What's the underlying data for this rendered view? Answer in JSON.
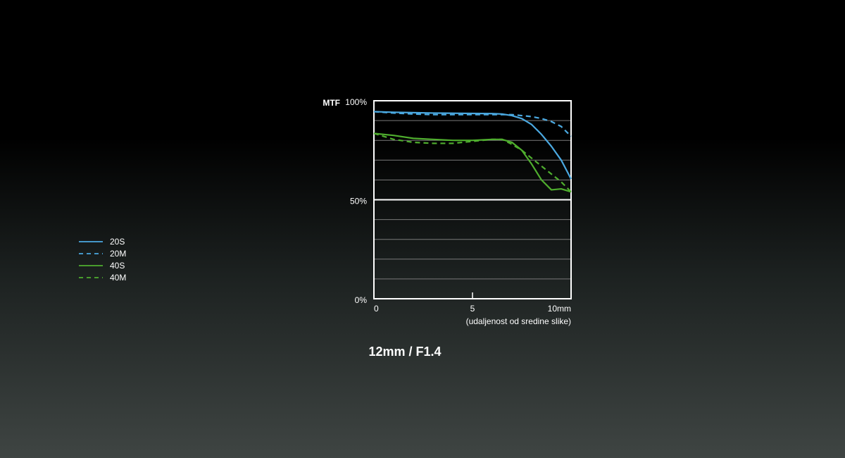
{
  "chart_data": {
    "type": "line",
    "title": "12mm / F1.4",
    "y_label": "MTF",
    "x_label": "(udaljenost od sredine slike)",
    "x": [
      0,
      1,
      2,
      3,
      4,
      5,
      6,
      6.5,
      7,
      7.5,
      8,
      8.5,
      9,
      9.5,
      10
    ],
    "series": [
      {
        "name": "20S",
        "color": "#4ba9e1",
        "dashed": false,
        "values": [
          94.5,
          94.2,
          94,
          93.8,
          93.7,
          93.6,
          93.5,
          93.3,
          92.5,
          91,
          88,
          83,
          77,
          70,
          60.5
        ]
      },
      {
        "name": "20M",
        "color": "#4ba9e1",
        "dashed": true,
        "values": [
          94.5,
          93.8,
          93.3,
          93,
          93,
          93,
          93,
          93,
          93,
          92.5,
          92,
          91,
          89.5,
          87,
          82
        ]
      },
      {
        "name": "40S",
        "color": "#4fae2e",
        "dashed": false,
        "values": [
          83.5,
          82.5,
          81,
          80.5,
          80,
          80,
          80.5,
          80.5,
          79,
          75,
          68,
          60,
          55,
          55.5,
          54
        ]
      },
      {
        "name": "40M",
        "color": "#4fae2e",
        "dashed": true,
        "values": [
          83.5,
          80.5,
          79,
          78.5,
          78.5,
          79.5,
          80.5,
          80.5,
          78,
          75,
          71,
          67,
          63,
          59,
          54
        ]
      }
    ],
    "xlim": [
      0,
      10
    ],
    "xticks": [
      0,
      5,
      {
        "value": 10,
        "label": "10mm"
      }
    ],
    "ylim": [
      0,
      100
    ],
    "yticks": [
      {
        "value": 0,
        "label": "0%"
      },
      {
        "value": 50,
        "label": "50%"
      },
      {
        "value": 100,
        "label": "100%"
      }
    ],
    "ygrid": [
      10,
      20,
      30,
      40,
      60,
      70,
      80,
      90
    ]
  }
}
